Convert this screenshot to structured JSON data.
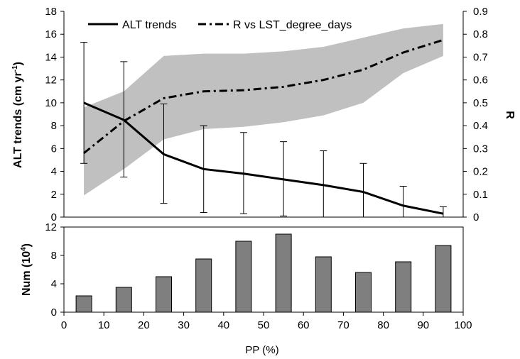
{
  "chart_data": [
    {
      "type": "line",
      "x": [
        5,
        15,
        25,
        35,
        45,
        55,
        65,
        75,
        85,
        95
      ],
      "series": [
        {
          "name": "ALT trends",
          "axis": "left",
          "style": "solid",
          "color": "#000000",
          "values": [
            10.0,
            8.5,
            5.5,
            4.2,
            3.8,
            3.3,
            2.8,
            2.2,
            1.0,
            0.3
          ],
          "error_upper": [
            15.3,
            13.6,
            9.9,
            8.0,
            7.4,
            6.6,
            5.8,
            4.7,
            2.7,
            0.9
          ],
          "error_lower": [
            4.7,
            3.5,
            1.2,
            0.4,
            0.3,
            0.1,
            0.0,
            0.0,
            0.0,
            0.0
          ]
        },
        {
          "name": "R vs LST_degree_days",
          "axis": "right",
          "style": "dash-dot",
          "color": "#000000",
          "values": [
            0.28,
            0.42,
            0.52,
            0.55,
            0.555,
            0.57,
            0.6,
            0.645,
            0.72,
            0.775
          ],
          "band_upper": [
            0.48,
            0.55,
            0.705,
            0.715,
            0.715,
            0.725,
            0.745,
            0.785,
            0.825,
            0.845
          ],
          "band_lower": [
            0.095,
            0.21,
            0.34,
            0.385,
            0.395,
            0.415,
            0.445,
            0.5,
            0.63,
            0.705
          ],
          "band_color": "#c0c0c0"
        }
      ],
      "ylabel": "ALT trends (cm yr",
      "ylabel_sup": "-1",
      "ylabel_close": ")",
      "y2label": "R",
      "ylim": [
        0,
        18
      ],
      "yticks": [
        "0",
        "2",
        "4",
        "6",
        "8",
        "10",
        "12",
        "14",
        "16",
        "18"
      ],
      "y2lim": [
        0,
        0.9
      ],
      "y2ticks": [
        "0",
        "0.1",
        "0.2",
        "0.3",
        "0.4",
        "0.5",
        "0.6",
        "0.7",
        "0.8",
        "0.9"
      ],
      "legend_position": "top",
      "grid": false
    },
    {
      "type": "bar",
      "x": [
        5,
        15,
        25,
        35,
        45,
        55,
        65,
        75,
        85,
        95
      ],
      "values": [
        2.3,
        3.5,
        5.0,
        7.5,
        10.0,
        11.0,
        7.8,
        5.6,
        7.1,
        9.4
      ],
      "bar_color": "#7f7f7f",
      "ylabel": "Num (10",
      "ylabel_sup": "4",
      "ylabel_close": ")",
      "ylim": [
        0,
        12
      ],
      "yticks": [
        "0",
        "4",
        "8",
        "12"
      ],
      "xlabel": "PP (%)",
      "xlim": [
        0,
        100
      ],
      "xticks": [
        "0",
        "10",
        "20",
        "30",
        "40",
        "50",
        "60",
        "70",
        "80",
        "90",
        "100"
      ],
      "grid": false
    }
  ]
}
